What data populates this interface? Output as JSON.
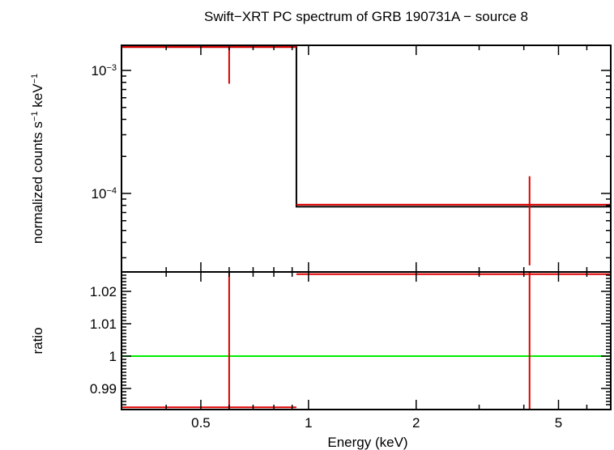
{
  "chart_data": [
    {
      "panel": "spectrum",
      "type": "scatter",
      "title": "Swift−XRT PC spectrum of GRB 190731A − source 8",
      "ylabel": {
        "base": "normalized counts s",
        "exp1": "−1",
        "mid": " keV",
        "exp2": "−1"
      },
      "xscale": "log",
      "yscale": "log",
      "xlim": [
        0.3,
        7.0
      ],
      "ylim": [
        2.3e-05,
        0.0016
      ],
      "yticks_major": [
        {
          "value": 0.001,
          "mant": "10",
          "exp": "−3"
        },
        {
          "value": 0.0001,
          "mant": "10",
          "exp": "−4"
        }
      ],
      "yticks_minor": [
        3e-05,
        4e-05,
        5e-05,
        6e-05,
        7e-05,
        8e-05,
        9e-05,
        0.0002,
        0.0003,
        0.0004,
        0.0005,
        0.0006,
        0.0007,
        0.0008,
        0.0009
      ],
      "series": [
        {
          "color": "#e00000",
          "points": [
            {
              "x": 0.6,
              "xlo": 0.3,
              "xhi": 0.925,
              "y": 0.00155,
              "ylo": 0.00078,
              "yhi": 0.00155
            },
            {
              "x": 4.15,
              "xlo": 0.925,
              "xhi": 7.0,
              "y": 8.1e-05,
              "ylo": 2.6e-05,
              "yhi": 0.000138
            }
          ]
        },
        {
          "color": "#000000",
          "step": [
            {
              "x0": 0.3,
              "x1": 0.925,
              "y": 0.00155
            },
            {
              "x0": 0.925,
              "x1": 7.0,
              "y": 7.8e-05
            }
          ]
        }
      ]
    },
    {
      "panel": "ratio",
      "type": "scatter",
      "xlabel": "Energy (keV)",
      "ylabel": "ratio",
      "xscale": "log",
      "xlim": [
        0.3,
        7.0
      ],
      "ylim": [
        0.9835,
        1.026
      ],
      "yticks": [
        {
          "value": 0.99,
          "label": "0.99"
        },
        {
          "value": 1.0,
          "label": "1"
        },
        {
          "value": 1.01,
          "label": "1.01"
        },
        {
          "value": 1.02,
          "label": "1.02"
        }
      ],
      "xticks": [
        {
          "value": 0.5,
          "label": "0.5"
        },
        {
          "value": 1,
          "label": "1"
        },
        {
          "value": 2,
          "label": "2"
        },
        {
          "value": 5,
          "label": "5"
        }
      ],
      "xticks_minor": [
        0.3,
        0.4,
        0.6,
        0.7,
        0.8,
        0.9,
        3,
        4,
        6,
        7
      ],
      "reference_line": {
        "y": 1.0,
        "color": "#00ee00"
      },
      "series": [
        {
          "color": "#e00000",
          "points": [
            {
              "x": 0.6,
              "xlo": 0.3,
              "xhi": 0.925,
              "y": 0.9842,
              "ylo": 0.9835,
              "yhi": 1.026
            },
            {
              "x": 4.15,
              "xlo": 0.925,
              "xhi": 7.0,
              "y": 1.0253,
              "ylo": 0.9835,
              "yhi": 1.026
            }
          ]
        }
      ]
    }
  ]
}
